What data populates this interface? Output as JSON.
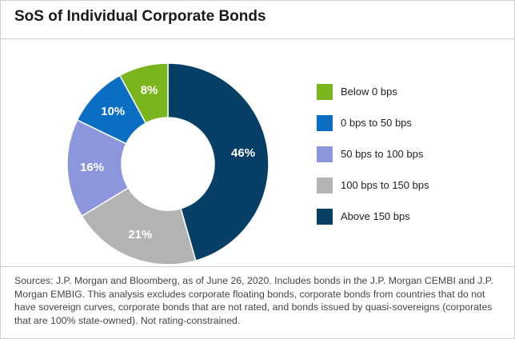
{
  "chart_data": {
    "type": "pie",
    "title": "SoS of Individual Corporate Bonds",
    "categories": [
      "Below 0 bps",
      "0 bps to 50 bps",
      "50 bps to 100 bps",
      "100 bps to 150 bps",
      "Above 150 bps"
    ],
    "values": [
      8,
      10,
      16,
      21,
      46
    ],
    "data_labels": [
      "8%",
      "10%",
      "16%",
      "21%",
      "46%"
    ],
    "colors": [
      "#7ab51d",
      "#0a6fc2",
      "#8c96dc",
      "#b3b3b3",
      "#073f66"
    ],
    "legend_position": "right",
    "donut": true
  },
  "footnote": "Sources: J.P. Morgan and Bloomberg, as of June 26, 2020. Includes bonds in the J.P. Morgan CEMBI and J.P. Morgan EMBIG. This analysis excludes corporate floating bonds, corporate bonds from countries that do not have sovereign curves, corporate bonds that are not rated, and bonds issued by quasi-sovereigns (corporates that are 100% state-owned). Not rating-constrained."
}
